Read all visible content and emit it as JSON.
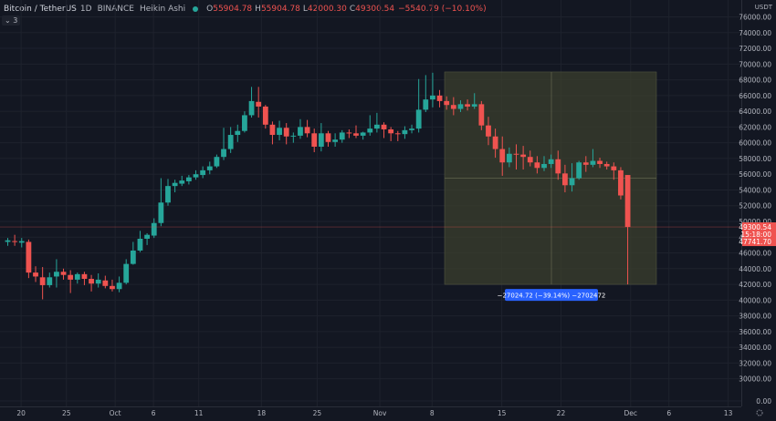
{
  "header": {
    "symbol": "Bitcoin / TetherUS",
    "interval": "1D",
    "exchange": "BINANCE",
    "chart_style": "Heikin Ashi",
    "o_label": "O",
    "o_value": "55904.78",
    "h_label": "H",
    "h_value": "55904.78",
    "l_label": "L",
    "l_value": "42000.30",
    "c_label": "C",
    "c_value": "49300.54",
    "change": "−5540.79 (−10.10%)",
    "live_icon": "green-dot-icon"
  },
  "indicator_toggle": "3",
  "price_axis": {
    "currency": "USDT",
    "ticks": [
      "76000.00",
      "74000.00",
      "72000.00",
      "70000.00",
      "68000.00",
      "66000.00",
      "64000.00",
      "62000.00",
      "60000.00",
      "58000.00",
      "56000.00",
      "54000.00",
      "52000.00",
      "50000.00",
      "48000.00",
      "46000.00",
      "44000.00",
      "42000.00",
      "40000.00",
      "38000.00",
      "36000.00",
      "34000.00",
      "32000.00",
      "30000.00",
      "0.00"
    ],
    "last_price": "49300.54",
    "countdown": "15:18:00",
    "secondary_price": "47741.70"
  },
  "time_axis": {
    "ticks": [
      "20",
      "25",
      "Oct",
      "6",
      "11",
      "18",
      "25",
      "Nov",
      "8",
      "15",
      "22",
      "Dec",
      "6",
      "13"
    ]
  },
  "measure_label": "−27024.72 (−39.14%) −2702472",
  "colors": {
    "up": "#26a69a",
    "down": "#ef5350",
    "background": "#131722",
    "measure_fill": "#3b3f2d",
    "measure_label_bg": "#2962ff"
  },
  "chart_data": {
    "type": "candlestick",
    "y_range": [
      28000,
      77000
    ],
    "candles": [
      {
        "o": 47400,
        "h": 47900,
        "l": 46900,
        "c": 47600
      },
      {
        "o": 47500,
        "h": 48300,
        "l": 46900,
        "c": 47400
      },
      {
        "o": 47300,
        "h": 47900,
        "l": 46700,
        "c": 47500
      },
      {
        "o": 47400,
        "h": 47700,
        "l": 42800,
        "c": 43500
      },
      {
        "o": 43500,
        "h": 44300,
        "l": 42300,
        "c": 43000
      },
      {
        "o": 42900,
        "h": 44200,
        "l": 40100,
        "c": 41900
      },
      {
        "o": 41900,
        "h": 43500,
        "l": 41600,
        "c": 42900
      },
      {
        "o": 43000,
        "h": 45200,
        "l": 41600,
        "c": 43600
      },
      {
        "o": 43600,
        "h": 44000,
        "l": 42600,
        "c": 43200
      },
      {
        "o": 43200,
        "h": 43800,
        "l": 40900,
        "c": 42600
      },
      {
        "o": 42600,
        "h": 43500,
        "l": 42100,
        "c": 43300
      },
      {
        "o": 43300,
        "h": 43600,
        "l": 41900,
        "c": 42700
      },
      {
        "o": 42700,
        "h": 43200,
        "l": 41100,
        "c": 42100
      },
      {
        "o": 42100,
        "h": 43400,
        "l": 41600,
        "c": 42600
      },
      {
        "o": 42500,
        "h": 43100,
        "l": 41500,
        "c": 41800
      },
      {
        "o": 41800,
        "h": 42600,
        "l": 41100,
        "c": 41400
      },
      {
        "o": 41400,
        "h": 43000,
        "l": 41000,
        "c": 42200
      },
      {
        "o": 42200,
        "h": 45200,
        "l": 42000,
        "c": 44600
      },
      {
        "o": 44600,
        "h": 47400,
        "l": 44500,
        "c": 46300
      },
      {
        "o": 46300,
        "h": 48800,
        "l": 46100,
        "c": 47800
      },
      {
        "o": 47800,
        "h": 48500,
        "l": 47000,
        "c": 48300
      },
      {
        "o": 48200,
        "h": 50400,
        "l": 47900,
        "c": 49800
      },
      {
        "o": 49800,
        "h": 55500,
        "l": 49400,
        "c": 52400
      },
      {
        "o": 52400,
        "h": 55400,
        "l": 52000,
        "c": 54500
      },
      {
        "o": 54500,
        "h": 55300,
        "l": 53700,
        "c": 54900
      },
      {
        "o": 54800,
        "h": 55800,
        "l": 54500,
        "c": 55200
      },
      {
        "o": 55100,
        "h": 55900,
        "l": 54700,
        "c": 55600
      },
      {
        "o": 55600,
        "h": 56500,
        "l": 55300,
        "c": 56000
      },
      {
        "o": 55900,
        "h": 57000,
        "l": 55500,
        "c": 56500
      },
      {
        "o": 56500,
        "h": 57600,
        "l": 56000,
        "c": 57000
      },
      {
        "o": 57000,
        "h": 58500,
        "l": 56800,
        "c": 58200
      },
      {
        "o": 58200,
        "h": 61900,
        "l": 57800,
        "c": 59200
      },
      {
        "o": 59200,
        "h": 62000,
        "l": 58700,
        "c": 61000
      },
      {
        "o": 61000,
        "h": 62300,
        "l": 60100,
        "c": 61500
      },
      {
        "o": 61500,
        "h": 64000,
        "l": 61300,
        "c": 63500
      },
      {
        "o": 63500,
        "h": 67100,
        "l": 63200,
        "c": 65300
      },
      {
        "o": 65200,
        "h": 67100,
        "l": 63200,
        "c": 64600
      },
      {
        "o": 64600,
        "h": 64800,
        "l": 61800,
        "c": 62300
      },
      {
        "o": 62300,
        "h": 62700,
        "l": 59800,
        "c": 61000
      },
      {
        "o": 61000,
        "h": 62800,
        "l": 60300,
        "c": 61900
      },
      {
        "o": 61900,
        "h": 62500,
        "l": 59800,
        "c": 60800
      },
      {
        "o": 60800,
        "h": 61300,
        "l": 60000,
        "c": 60900
      },
      {
        "o": 60900,
        "h": 63000,
        "l": 60500,
        "c": 62000
      },
      {
        "o": 62000,
        "h": 62900,
        "l": 60700,
        "c": 61200
      },
      {
        "o": 61200,
        "h": 61800,
        "l": 58800,
        "c": 59500
      },
      {
        "o": 59500,
        "h": 62500,
        "l": 58900,
        "c": 61200
      },
      {
        "o": 61200,
        "h": 61500,
        "l": 59500,
        "c": 60100
      },
      {
        "o": 60100,
        "h": 61200,
        "l": 59500,
        "c": 60400
      },
      {
        "o": 60400,
        "h": 61600,
        "l": 60000,
        "c": 61300
      },
      {
        "o": 61300,
        "h": 61700,
        "l": 60600,
        "c": 61200
      },
      {
        "o": 61200,
        "h": 62200,
        "l": 60600,
        "c": 60900
      },
      {
        "o": 60900,
        "h": 61400,
        "l": 60400,
        "c": 61300
      },
      {
        "o": 61300,
        "h": 63500,
        "l": 60900,
        "c": 61800
      },
      {
        "o": 61800,
        "h": 63800,
        "l": 61300,
        "c": 62300
      },
      {
        "o": 62300,
        "h": 62600,
        "l": 60600,
        "c": 61700
      },
      {
        "o": 61700,
        "h": 62000,
        "l": 60200,
        "c": 61200
      },
      {
        "o": 61200,
        "h": 61500,
        "l": 60200,
        "c": 61100
      },
      {
        "o": 61100,
        "h": 62100,
        "l": 60500,
        "c": 61600
      },
      {
        "o": 61600,
        "h": 62300,
        "l": 61200,
        "c": 61800
      },
      {
        "o": 61800,
        "h": 68100,
        "l": 61300,
        "c": 64200
      },
      {
        "o": 64200,
        "h": 68600,
        "l": 63900,
        "c": 65500
      },
      {
        "o": 65500,
        "h": 68900,
        "l": 64500,
        "c": 66000
      },
      {
        "o": 66000,
        "h": 66700,
        "l": 64500,
        "c": 65300
      },
      {
        "o": 65300,
        "h": 65900,
        "l": 64200,
        "c": 64800
      },
      {
        "o": 64800,
        "h": 65800,
        "l": 63500,
        "c": 64300
      },
      {
        "o": 64300,
        "h": 65400,
        "l": 63900,
        "c": 64900
      },
      {
        "o": 64900,
        "h": 65500,
        "l": 64100,
        "c": 64600
      },
      {
        "o": 64600,
        "h": 66300,
        "l": 64300,
        "c": 64900
      },
      {
        "o": 64900,
        "h": 65300,
        "l": 61600,
        "c": 62200
      },
      {
        "o": 62200,
        "h": 63300,
        "l": 59700,
        "c": 60800
      },
      {
        "o": 60800,
        "h": 61800,
        "l": 58100,
        "c": 59200
      },
      {
        "o": 59200,
        "h": 60800,
        "l": 55800,
        "c": 57500
      },
      {
        "o": 57500,
        "h": 59400,
        "l": 56900,
        "c": 58600
      },
      {
        "o": 58600,
        "h": 59800,
        "l": 56600,
        "c": 58500
      },
      {
        "o": 58500,
        "h": 59600,
        "l": 56600,
        "c": 58200
      },
      {
        "o": 58200,
        "h": 59000,
        "l": 57000,
        "c": 57500
      },
      {
        "o": 57500,
        "h": 58300,
        "l": 56100,
        "c": 56800
      },
      {
        "o": 56800,
        "h": 58300,
        "l": 56400,
        "c": 57300
      },
      {
        "o": 57300,
        "h": 58500,
        "l": 56800,
        "c": 57900
      },
      {
        "o": 57900,
        "h": 59000,
        "l": 55300,
        "c": 56100
      },
      {
        "o": 56100,
        "h": 57200,
        "l": 53700,
        "c": 54600
      },
      {
        "o": 54600,
        "h": 57400,
        "l": 53800,
        "c": 55500
      },
      {
        "o": 55500,
        "h": 57700,
        "l": 55300,
        "c": 57500
      },
      {
        "o": 57500,
        "h": 58300,
        "l": 56300,
        "c": 57200
      },
      {
        "o": 57200,
        "h": 59200,
        "l": 56900,
        "c": 57700
      },
      {
        "o": 57700,
        "h": 58100,
        "l": 56800,
        "c": 57300
      },
      {
        "o": 57300,
        "h": 57600,
        "l": 56600,
        "c": 57000
      },
      {
        "o": 57000,
        "h": 57500,
        "l": 55300,
        "c": 56500
      },
      {
        "o": 56500,
        "h": 56900,
        "l": 52800,
        "c": 53300
      },
      {
        "o": 55900,
        "h": 55900,
        "l": 42000,
        "c": 49300
      }
    ],
    "measure": {
      "x_from_index": 61,
      "x_to_index": 89,
      "price_from": 69000,
      "price_to": 42000
    }
  }
}
